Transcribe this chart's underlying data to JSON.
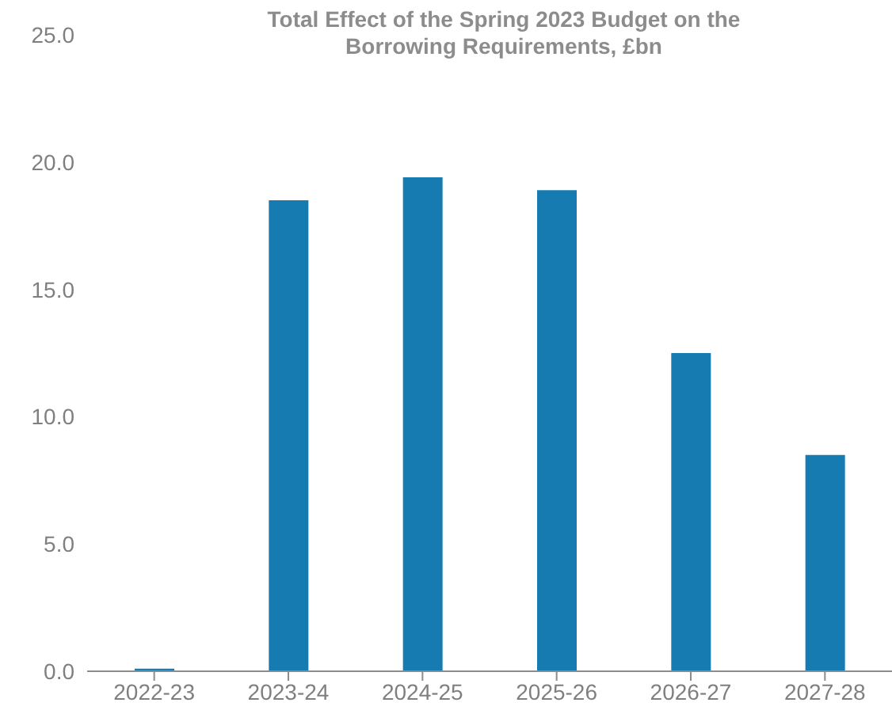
{
  "chart_data": {
    "type": "bar",
    "title": "Total Effect of the Spring 2023 Budget on the Borrowing Requirements, £bn",
    "categories": [
      "2022-23",
      "2023-24",
      "2024-25",
      "2025-26",
      "2026-27",
      "2027-28"
    ],
    "values": [
      0.1,
      18.5,
      19.4,
      18.9,
      12.5,
      8.5
    ],
    "color": "#157bb1",
    "ylim": [
      0,
      25
    ],
    "yticks": [
      {
        "value": 0,
        "label": "0.0"
      },
      {
        "value": 5,
        "label": "5.0"
      },
      {
        "value": 10,
        "label": "10.0"
      },
      {
        "value": 15,
        "label": "15.0"
      },
      {
        "value": 20,
        "label": "20.0"
      },
      {
        "value": 25,
        "label": "25.0"
      }
    ],
    "grid": false,
    "legend": false
  }
}
